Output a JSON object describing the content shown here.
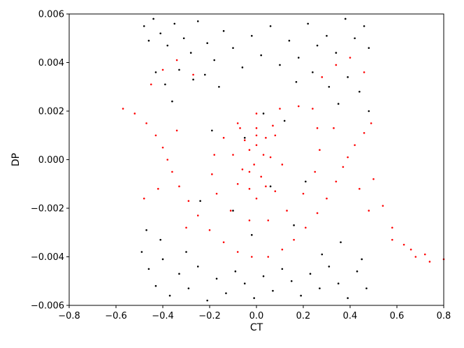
{
  "chart_data": {
    "type": "scatter",
    "title": "",
    "xlabel": "CT",
    "ylabel": "DP",
    "xlim": [
      -0.8,
      0.8
    ],
    "ylim": [
      -0.006,
      0.006
    ],
    "grid": false,
    "x_ticks": [
      -0.8,
      -0.6,
      -0.4,
      -0.2,
      0.0,
      0.2,
      0.4,
      0.6,
      0.8
    ],
    "x_tick_labels": [
      "−0.8",
      "−0.6",
      "−0.4",
      "−0.2",
      "0.0",
      "0.2",
      "0.4",
      "0.6",
      "0.8"
    ],
    "y_ticks": [
      -0.006,
      -0.004,
      -0.002,
      0.0,
      0.002,
      0.004,
      0.006
    ],
    "y_tick_labels": [
      "−0.006",
      "−0.004",
      "−0.002",
      "0.000",
      "0.002",
      "0.004",
      "0.006"
    ],
    "series": [
      {
        "color": "#000000",
        "points": [
          [
            -0.48,
            0.0055
          ],
          [
            -0.46,
            0.0049
          ],
          [
            -0.44,
            0.0058
          ],
          [
            -0.41,
            0.0052
          ],
          [
            -0.38,
            0.0047
          ],
          [
            -0.35,
            0.0056
          ],
          [
            -0.31,
            0.005
          ],
          [
            -0.28,
            0.0044
          ],
          [
            -0.25,
            0.0057
          ],
          [
            -0.21,
            0.0048
          ],
          [
            -0.18,
            0.0041
          ],
          [
            -0.14,
            0.0053
          ],
          [
            -0.1,
            0.0046
          ],
          [
            -0.06,
            0.0038
          ],
          [
            -0.02,
            0.0051
          ],
          [
            0.02,
            0.0043
          ],
          [
            0.06,
            0.0055
          ],
          [
            0.1,
            0.0039
          ],
          [
            0.14,
            0.0049
          ],
          [
            0.18,
            0.0042
          ],
          [
            0.22,
            0.0056
          ],
          [
            0.26,
            0.0047
          ],
          [
            0.3,
            0.0051
          ],
          [
            0.34,
            0.0044
          ],
          [
            0.38,
            0.0058
          ],
          [
            0.42,
            0.005
          ],
          [
            0.46,
            0.0055
          ],
          [
            0.48,
            0.0046
          ],
          [
            -0.43,
            0.0036
          ],
          [
            -0.39,
            0.0031
          ],
          [
            -0.33,
            0.0037
          ],
          [
            -0.27,
            0.0033
          ],
          [
            -0.22,
            0.0035
          ],
          [
            -0.16,
            0.003
          ],
          [
            0.17,
            0.0032
          ],
          [
            0.24,
            0.0036
          ],
          [
            0.31,
            0.003
          ],
          [
            0.39,
            0.0034
          ],
          [
            0.44,
            0.0028
          ],
          [
            -0.36,
            0.0024
          ],
          [
            0.35,
            0.0023
          ],
          [
            0.48,
            0.002
          ],
          [
            -0.49,
            -0.0038
          ],
          [
            -0.46,
            -0.0045
          ],
          [
            -0.43,
            -0.0052
          ],
          [
            -0.4,
            -0.0041
          ],
          [
            -0.37,
            -0.0056
          ],
          [
            -0.33,
            -0.0047
          ],
          [
            -0.29,
            -0.0053
          ],
          [
            -0.25,
            -0.0044
          ],
          [
            -0.21,
            -0.0058
          ],
          [
            -0.17,
            -0.0049
          ],
          [
            -0.13,
            -0.0055
          ],
          [
            -0.09,
            -0.0046
          ],
          [
            -0.05,
            -0.0051
          ],
          [
            -0.01,
            -0.0057
          ],
          [
            0.03,
            -0.0048
          ],
          [
            0.07,
            -0.0054
          ],
          [
            0.11,
            -0.0045
          ],
          [
            0.15,
            -0.005
          ],
          [
            0.19,
            -0.0056
          ],
          [
            0.23,
            -0.0047
          ],
          [
            0.27,
            -0.0053
          ],
          [
            0.31,
            -0.0044
          ],
          [
            0.35,
            -0.0051
          ],
          [
            0.39,
            -0.0057
          ],
          [
            0.43,
            -0.0046
          ],
          [
            0.47,
            -0.0053
          ],
          [
            -0.47,
            -0.0029
          ],
          [
            -0.41,
            -0.0033
          ],
          [
            -0.3,
            -0.0038
          ],
          [
            0.28,
            -0.0039
          ],
          [
            0.36,
            -0.0034
          ],
          [
            0.45,
            -0.0041
          ],
          [
            -0.05,
            0.0009
          ],
          [
            0.06,
            -0.0011
          ],
          [
            -0.1,
            -0.0021
          ],
          [
            0.12,
            0.0016
          ],
          [
            0.21,
            -0.0009
          ],
          [
            -0.19,
            0.0012
          ],
          [
            0.03,
            0.0019
          ],
          [
            -0.02,
            -0.0031
          ],
          [
            0.16,
            -0.0027
          ],
          [
            -0.24,
            -0.0017
          ]
        ]
      },
      {
        "color": "#ff0000",
        "points": [
          [
            -0.57,
            0.0021
          ],
          [
            -0.52,
            0.0019
          ],
          [
            -0.47,
            0.0015
          ],
          [
            -0.43,
            0.001
          ],
          [
            -0.4,
            0.0005
          ],
          [
            -0.38,
            0.0
          ],
          [
            -0.36,
            -0.0005
          ],
          [
            -0.33,
            -0.0011
          ],
          [
            -0.29,
            -0.0017
          ],
          [
            -0.25,
            -0.0023
          ],
          [
            -0.2,
            -0.0029
          ],
          [
            -0.14,
            -0.0034
          ],
          [
            -0.08,
            -0.0038
          ],
          [
            -0.02,
            -0.004
          ],
          [
            0.05,
            -0.004
          ],
          [
            0.11,
            -0.0037
          ],
          [
            0.16,
            -0.0033
          ],
          [
            0.21,
            -0.0028
          ],
          [
            0.26,
            -0.0022
          ],
          [
            0.3,
            -0.0016
          ],
          [
            0.34,
            -0.0009
          ],
          [
            0.37,
            -0.0003
          ],
          [
            0.39,
            0.0001
          ],
          [
            0.42,
            0.0006
          ],
          [
            0.46,
            0.0011
          ],
          [
            0.49,
            0.0015
          ],
          [
            0.5,
            -0.0008
          ],
          [
            0.54,
            -0.0019
          ],
          [
            0.58,
            -0.0028
          ],
          [
            0.63,
            -0.0035
          ],
          [
            0.68,
            -0.004
          ],
          [
            0.74,
            -0.0042
          ],
          [
            0.8,
            -0.0041
          ],
          [
            0.24,
            0.0021
          ],
          [
            0.18,
            0.0022
          ],
          [
            0.1,
            0.0021
          ],
          [
            0.0,
            0.0019
          ],
          [
            -0.08,
            0.0015
          ],
          [
            -0.14,
            0.0009
          ],
          [
            -0.18,
            0.0002
          ],
          [
            -0.19,
            -0.0006
          ],
          [
            -0.17,
            -0.0014
          ],
          [
            -0.11,
            -0.0021
          ],
          [
            -0.03,
            -0.0025
          ],
          [
            0.05,
            -0.0025
          ],
          [
            0.13,
            -0.0021
          ],
          [
            0.2,
            -0.0014
          ],
          [
            0.25,
            -0.0005
          ],
          [
            0.27,
            0.0004
          ],
          [
            0.26,
            0.0013
          ],
          [
            0.07,
            0.0014
          ],
          [
            -0.07,
            0.0013
          ],
          [
            -0.1,
            0.0002
          ],
          [
            -0.08,
            -0.001
          ],
          [
            0.0,
            -0.0016
          ],
          [
            0.08,
            -0.0013
          ],
          [
            0.11,
            -0.0002
          ],
          [
            0.08,
            0.001
          ],
          [
            0.0,
            0.0013
          ],
          [
            -0.05,
            0.0008
          ],
          [
            -0.06,
            -0.0004
          ],
          [
            -0.03,
            -0.0012
          ],
          [
            0.04,
            -0.0011
          ],
          [
            0.06,
            0.0001
          ],
          [
            0.04,
            0.0009
          ],
          [
            0.0,
            0.001
          ],
          [
            -0.03,
            0.0004
          ],
          [
            -0.03,
            -0.0005
          ],
          [
            0.02,
            -0.0007
          ],
          [
            0.03,
            0.0002
          ],
          [
            0.0,
            0.0006
          ],
          [
            -0.01,
            -0.0002
          ],
          [
            -0.45,
            0.0031
          ],
          [
            -0.4,
            0.0037
          ],
          [
            -0.34,
            0.0041
          ],
          [
            -0.27,
            0.0035
          ],
          [
            0.28,
            0.0034
          ],
          [
            0.34,
            0.0039
          ],
          [
            0.4,
            0.0042
          ],
          [
            0.46,
            0.0036
          ],
          [
            -0.42,
            -0.0012
          ],
          [
            -0.34,
            0.0012
          ],
          [
            0.33,
            0.0013
          ],
          [
            0.44,
            -0.0012
          ],
          [
            -0.48,
            -0.0016
          ],
          [
            0.48,
            -0.0021
          ],
          [
            -0.3,
            -0.0028
          ],
          [
            0.58,
            -0.0033
          ],
          [
            0.66,
            -0.0037
          ],
          [
            0.72,
            -0.0039
          ]
        ]
      }
    ]
  }
}
